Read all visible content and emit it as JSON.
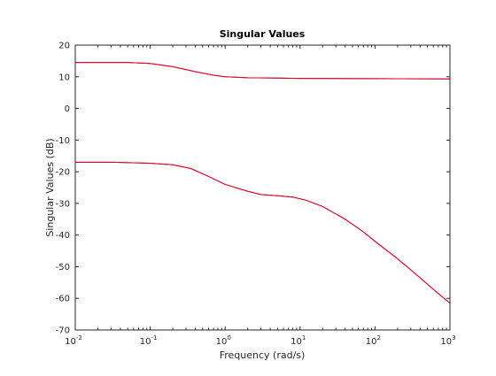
{
  "chart_data": {
    "type": "line",
    "title": "Singular Values",
    "xlabel": "Frequency (rad/s)",
    "ylabel": "Singular Values (dB)",
    "xscale": "log",
    "xlim": [
      0.01,
      1000
    ],
    "ylim": [
      -70,
      20
    ],
    "grid": false,
    "x_ticks": [
      {
        "value": 0.01,
        "base": "10",
        "exp": "-2"
      },
      {
        "value": 0.1,
        "base": "10",
        "exp": "-1"
      },
      {
        "value": 1,
        "base": "10",
        "exp": "0"
      },
      {
        "value": 10,
        "base": "10",
        "exp": "1"
      },
      {
        "value": 100,
        "base": "10",
        "exp": "2"
      },
      {
        "value": 1000,
        "base": "10",
        "exp": "3"
      }
    ],
    "y_ticks": [
      20,
      10,
      0,
      -10,
      -20,
      -30,
      -40,
      -50,
      -60,
      -70
    ],
    "series": [
      {
        "color": "#0000ff",
        "points": [
          {
            "x": 0.01,
            "y": 14.5
          },
          {
            "x": 0.05,
            "y": 14.5
          },
          {
            "x": 0.1,
            "y": 14.2
          },
          {
            "x": 0.2,
            "y": 13.2
          },
          {
            "x": 0.4,
            "y": 11.6
          },
          {
            "x": 0.7,
            "y": 10.5
          },
          {
            "x": 1,
            "y": 10.0
          },
          {
            "x": 2,
            "y": 9.7
          },
          {
            "x": 5,
            "y": 9.6
          },
          {
            "x": 10,
            "y": 9.5
          },
          {
            "x": 100,
            "y": 9.4
          },
          {
            "x": 1000,
            "y": 9.3
          }
        ]
      },
      {
        "color": "#ff0000",
        "points": [
          {
            "x": 0.01,
            "y": 14.5
          },
          {
            "x": 0.05,
            "y": 14.5
          },
          {
            "x": 0.1,
            "y": 14.2
          },
          {
            "x": 0.2,
            "y": 13.2
          },
          {
            "x": 0.4,
            "y": 11.6
          },
          {
            "x": 0.7,
            "y": 10.5
          },
          {
            "x": 1,
            "y": 10.0
          },
          {
            "x": 2,
            "y": 9.7
          },
          {
            "x": 5,
            "y": 9.6
          },
          {
            "x": 10,
            "y": 9.5
          },
          {
            "x": 100,
            "y": 9.4
          },
          {
            "x": 1000,
            "y": 9.3
          }
        ]
      },
      {
        "color": "#0000ff",
        "points": [
          {
            "x": 0.01,
            "y": -17.0
          },
          {
            "x": 0.03,
            "y": -17.0
          },
          {
            "x": 0.1,
            "y": -17.3
          },
          {
            "x": 0.2,
            "y": -17.8
          },
          {
            "x": 0.35,
            "y": -19.0
          },
          {
            "x": 0.6,
            "y": -21.5
          },
          {
            "x": 1,
            "y": -24.0
          },
          {
            "x": 2,
            "y": -26.2
          },
          {
            "x": 3,
            "y": -27.2
          },
          {
            "x": 5,
            "y": -27.6
          },
          {
            "x": 8,
            "y": -28.0
          },
          {
            "x": 12,
            "y": -29.0
          },
          {
            "x": 20,
            "y": -31.0
          },
          {
            "x": 40,
            "y": -35.0
          },
          {
            "x": 70,
            "y": -39.0
          },
          {
            "x": 100,
            "y": -42.0
          },
          {
            "x": 200,
            "y": -47.5
          },
          {
            "x": 400,
            "y": -53.5
          },
          {
            "x": 700,
            "y": -58.5
          },
          {
            "x": 1000,
            "y": -61.5
          }
        ]
      },
      {
        "color": "#ff0000",
        "points": [
          {
            "x": 0.01,
            "y": -17.0
          },
          {
            "x": 0.03,
            "y": -17.0
          },
          {
            "x": 0.1,
            "y": -17.3
          },
          {
            "x": 0.2,
            "y": -17.8
          },
          {
            "x": 0.35,
            "y": -19.0
          },
          {
            "x": 0.6,
            "y": -21.5
          },
          {
            "x": 1,
            "y": -24.0
          },
          {
            "x": 2,
            "y": -26.2
          },
          {
            "x": 3,
            "y": -27.2
          },
          {
            "x": 5,
            "y": -27.6
          },
          {
            "x": 8,
            "y": -28.0
          },
          {
            "x": 12,
            "y": -29.0
          },
          {
            "x": 20,
            "y": -31.0
          },
          {
            "x": 40,
            "y": -35.0
          },
          {
            "x": 70,
            "y": -39.0
          },
          {
            "x": 100,
            "y": -42.0
          },
          {
            "x": 200,
            "y": -47.5
          },
          {
            "x": 400,
            "y": -53.5
          },
          {
            "x": 700,
            "y": -58.5
          },
          {
            "x": 1000,
            "y": -61.5
          }
        ]
      }
    ]
  }
}
